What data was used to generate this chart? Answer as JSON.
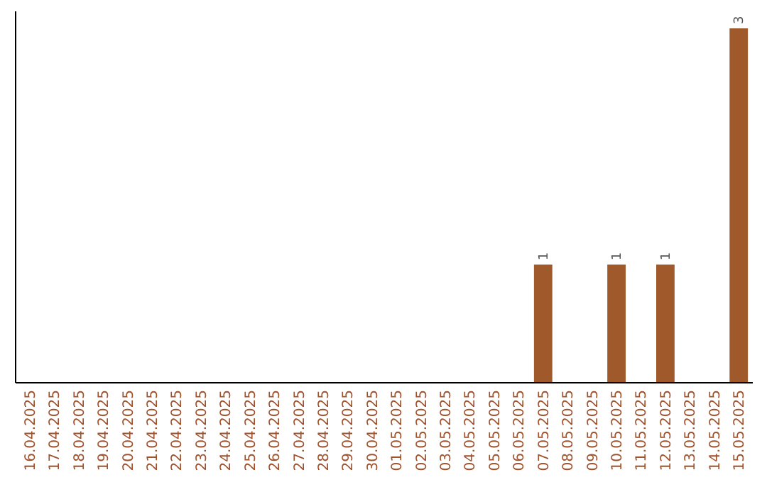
{
  "chart_data": {
    "type": "bar",
    "categories": [
      "16.04.2025",
      "17.04.2025",
      "18.04.2025",
      "19.04.2025",
      "20.04.2025",
      "21.04.2025",
      "22.04.2025",
      "23.04.2025",
      "24.04.2025",
      "25.04.2025",
      "26.04.2025",
      "27.04.2025",
      "28.04.2025",
      "29.04.2025",
      "30.04.2025",
      "01.05.2025",
      "02.05.2025",
      "03.05.2025",
      "04.05.2025",
      "05.05.2025",
      "06.05.2025",
      "07.05.2025",
      "08.05.2025",
      "09.05.2025",
      "10.05.2025",
      "11.05.2025",
      "12.05.2025",
      "13.05.2025",
      "14.05.2025",
      "15.05.2025"
    ],
    "values": [
      null,
      null,
      null,
      null,
      null,
      null,
      null,
      null,
      null,
      null,
      null,
      null,
      null,
      null,
      null,
      null,
      null,
      null,
      null,
      null,
      null,
      1,
      null,
      null,
      1,
      null,
      1,
      null,
      null,
      3
    ],
    "data_labels": true,
    "color": "#a0592a",
    "tick_labels": "x"
  }
}
